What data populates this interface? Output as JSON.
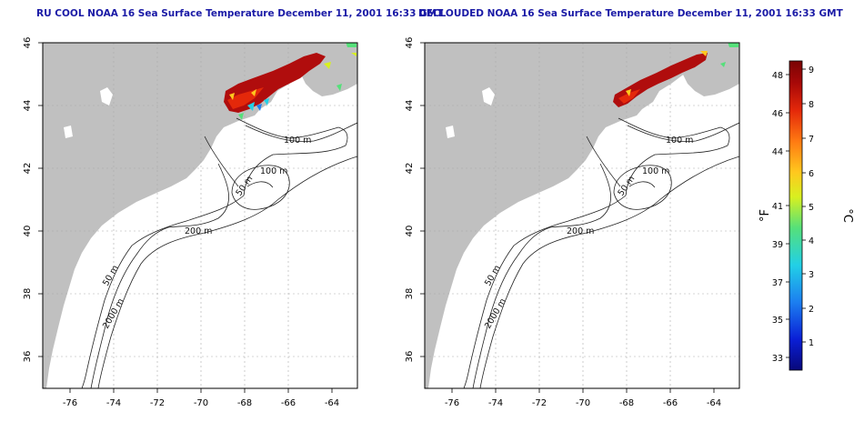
{
  "panels": [
    {
      "title": "RU COOL NOAA 16 Sea Surface Temperature December 11, 2001 16:33 GMT",
      "lat_ticks": [
        "46",
        "44",
        "42",
        "40",
        "38",
        "36"
      ],
      "lon_ticks": [
        "-76",
        "-74",
        "-72",
        "-70",
        "-68",
        "-66",
        "-64"
      ],
      "contour_labels": [
        "100 m",
        "100 m",
        "50 m",
        "200 m",
        "50 m",
        "2000 m"
      ]
    },
    {
      "title": "DECLOUDED NOAA 16 Sea Surface Temperature December 11, 2001 16:33 GMT",
      "lat_ticks": [
        "46",
        "44",
        "42",
        "40",
        "38",
        "36"
      ],
      "lon_ticks": [
        "-76",
        "-74",
        "-72",
        "-70",
        "-68",
        "-66",
        "-64"
      ],
      "contour_labels": [
        "100 m",
        "100 m",
        "50 m",
        "200 m",
        "50 m",
        "2000 m"
      ]
    }
  ],
  "colorbar": {
    "fahrenheit_label": "°F",
    "celsius_label": "°C",
    "fahrenheit_ticks": [
      "48",
      "46",
      "44",
      "41",
      "39",
      "37",
      "35",
      "33"
    ],
    "celsius_ticks": [
      "9",
      "8",
      "7",
      "6",
      "5",
      "4",
      "3",
      "2",
      "1"
    ],
    "colors": [
      "#08087a",
      "#0a1fd6",
      "#1c7ff0",
      "#22d0e6",
      "#55e07a",
      "#d8f020",
      "#ffc81e",
      "#ff7a12",
      "#e4280a",
      "#a70808",
      "#7a0404"
    ]
  },
  "colors": {
    "title": "#1a1aa6",
    "land": "#c0c0c0",
    "ocean": "#ffffff",
    "grid": "#aaaaaa",
    "sst_warm": "#b00d0d"
  }
}
